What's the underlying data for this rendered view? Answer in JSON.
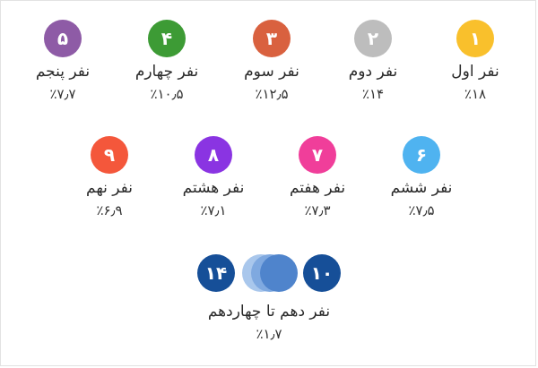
{
  "rankers": [
    {
      "id": "r1",
      "number": "۱",
      "label": "نفر اول",
      "share": "٪۱۸",
      "color": "#f9c02c"
    },
    {
      "id": "r2",
      "number": "۲",
      "label": "نفر دوم",
      "share": "٪۱۴",
      "color": "#bdbdbd"
    },
    {
      "id": "r3",
      "number": "۳",
      "label": "نفر سوم",
      "share": "٪۱۲٫۵",
      "color": "#d9613f"
    },
    {
      "id": "r4",
      "number": "۴",
      "label": "نفر چهارم",
      "share": "٪۱۰٫۵",
      "color": "#3d9b35"
    },
    {
      "id": "r5",
      "number": "۵",
      "label": "نفر پنجم",
      "share": "٪۷٫۷",
      "color": "#8e5ba6"
    },
    {
      "id": "r6",
      "number": "۶",
      "label": "نفر ششم",
      "share": "٪۷٫۵",
      "color": "#4fb3f0"
    },
    {
      "id": "r7",
      "number": "۷",
      "label": "نفر هفتم",
      "share": "٪۷٫۳",
      "color": "#f03e9a"
    },
    {
      "id": "r8",
      "number": "۸",
      "label": "نفر هشتم",
      "share": "٪۷٫۱",
      "color": "#8a34e2"
    },
    {
      "id": "r9",
      "number": "۹",
      "label": "نفر نهم",
      "share": "٪۶٫۹",
      "color": "#f4573b"
    }
  ],
  "group": {
    "from_number": "۱۰",
    "to_number": "۱۴",
    "label": "نفر دهم تا چهاردهم",
    "share": "٪۱٫۷",
    "color": "#164f98",
    "fade_colors": [
      "#a9c7ec",
      "#7fa9e0",
      "#4f84cc"
    ]
  }
}
